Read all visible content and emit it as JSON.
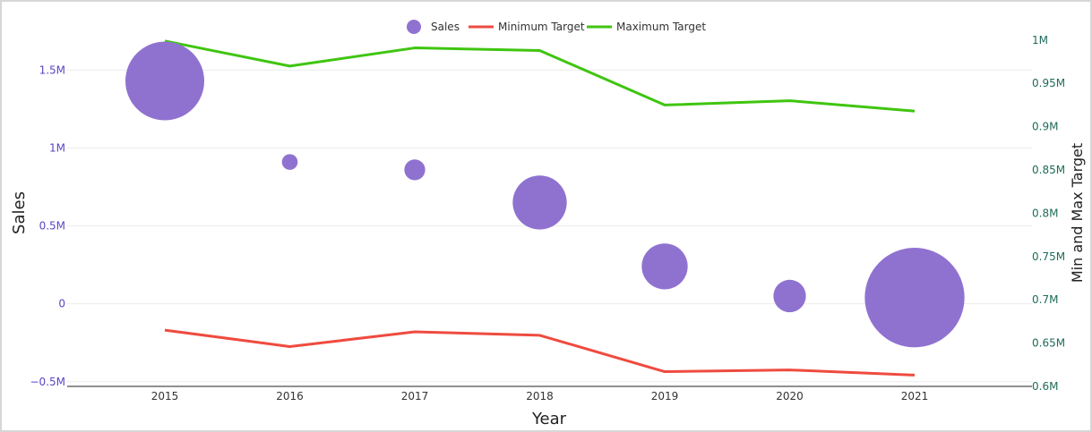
{
  "chart_data": {
    "type": "bubble-line-combo",
    "x": [
      2015,
      2016,
      2017,
      2018,
      2019,
      2020,
      2021
    ],
    "xlabel": "Year",
    "ylabel_left": "Sales",
    "ylabel_right": "Min and Max Target",
    "ylim_left": [
      -0.53,
      1.72
    ],
    "ylim_right": [
      0.6,
      1.005
    ],
    "left_ticks": [
      {
        "v": 1.5,
        "label": "1.5M"
      },
      {
        "v": 1.0,
        "label": "1M"
      },
      {
        "v": 0.5,
        "label": "0.5M"
      },
      {
        "v": 0.0,
        "label": "0"
      },
      {
        "v": -0.5,
        "label": "−0.5M"
      }
    ],
    "right_ticks": [
      {
        "v": 1.0,
        "label": "1M"
      },
      {
        "v": 0.95,
        "label": "0.95M"
      },
      {
        "v": 0.9,
        "label": "0.9M"
      },
      {
        "v": 0.85,
        "label": "0.85M"
      },
      {
        "v": 0.8,
        "label": "0.8M"
      },
      {
        "v": 0.75,
        "label": "0.75M"
      },
      {
        "v": 0.7,
        "label": "0.7M"
      },
      {
        "v": 0.65,
        "label": "0.65M"
      },
      {
        "v": 0.6,
        "label": "0.6M"
      }
    ],
    "series": [
      {
        "name": "Sales",
        "kind": "bubble",
        "axis": "left",
        "color": "#8f72d0",
        "values": [
          1.43,
          0.91,
          0.86,
          0.65,
          0.24,
          0.05,
          0.04
        ],
        "sizes": [
          1.0,
          0.04,
          0.07,
          0.47,
          0.34,
          0.17,
          1.6
        ]
      },
      {
        "name": "Minimum Target",
        "kind": "line",
        "axis": "right",
        "color": "#ef4b3f",
        "values": [
          0.665,
          0.646,
          0.663,
          0.659,
          0.617,
          0.619,
          0.613
        ]
      },
      {
        "name": "Maximum Target",
        "kind": "line",
        "axis": "right",
        "color": "#3fc510",
        "values": [
          0.999,
          0.97,
          0.991,
          0.988,
          0.925,
          0.93,
          0.918
        ]
      }
    ],
    "legend_position": "top-center",
    "grid": true
  }
}
